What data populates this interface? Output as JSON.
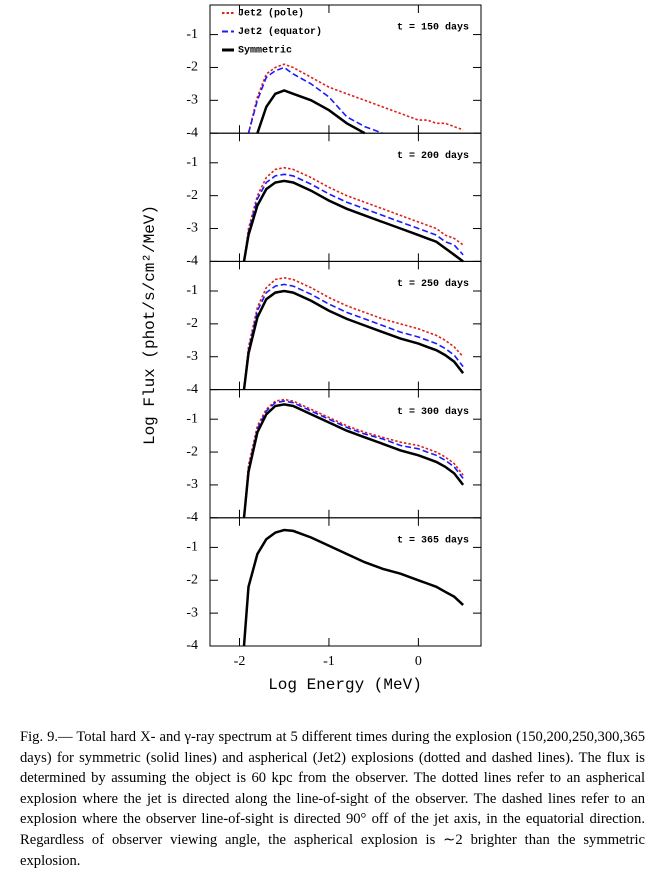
{
  "ylabel": "Log Flux (phot/s/cm²/MeV)",
  "xlabel": "Log Energy (MeV)",
  "caption": "Fig. 9.— Total hard X- and γ-ray spectrum at 5 different times during the explosion (150,200,250,300,365 days) for symmetric (solid lines) and aspherical (Jet2) explosions (dotted and dashed lines). The flux is determined by assuming the object is 60 kpc from the observer. The dotted lines refer to an aspherical explosion where the jet is directed along the line-of-sight of the observer. The dashed lines refer to an explosion where the observer line-of-sight is directed 90° off of the jet axis, in the equatorial direction. Regardless of observer viewing angle, the aspherical explosion is ∼2 brighter than the symmetric explosion.",
  "chart_data": [
    {
      "type": "line",
      "annotation": "t = 150 days",
      "x": [
        -1.95,
        -1.9,
        -1.8,
        -1.7,
        -1.6,
        -1.5,
        -1.4,
        -1.2,
        -1.0,
        -0.8,
        -0.6,
        -0.4,
        -0.2,
        0,
        0.1,
        0.2,
        0.3,
        0.4,
        0.5
      ],
      "series": [
        {
          "name": "Jet2 (pole)",
          "color": "#e0201b",
          "dash": "dotted",
          "values": [
            null,
            -4,
            -2.9,
            -2.2,
            -2.0,
            -1.9,
            -2.0,
            -2.3,
            -2.6,
            -2.8,
            -3.0,
            -3.2,
            -3.4,
            -3.6,
            -3.6,
            -3.7,
            -3.7,
            -3.8,
            -3.9
          ]
        },
        {
          "name": "Jet2 (equator)",
          "color": "#1a1aff",
          "dash": "dashed",
          "values": [
            null,
            -4,
            -3.0,
            -2.3,
            -2.1,
            -2.0,
            -2.2,
            -2.5,
            -2.9,
            -3.5,
            -3.8,
            -4,
            null,
            null,
            null,
            null,
            null,
            null,
            null
          ]
        },
        {
          "name": "Symmetric",
          "color": "#000000",
          "dash": "solid",
          "values": [
            null,
            null,
            -4,
            -3.2,
            -2.8,
            -2.7,
            -2.8,
            -3.0,
            -3.3,
            -3.7,
            -4,
            null,
            null,
            null,
            null,
            null,
            null,
            null,
            null
          ]
        }
      ],
      "xlim": [
        -2.33,
        0.7
      ],
      "xticks": [
        -2,
        -1,
        0
      ],
      "ylim": [
        -4,
        -0.1
      ],
      "yticks": [
        -4,
        -3,
        -2,
        -1
      ]
    },
    {
      "type": "line",
      "annotation": "t = 200 days",
      "x": [
        -1.95,
        -1.9,
        -1.8,
        -1.7,
        -1.6,
        -1.5,
        -1.4,
        -1.2,
        -1.0,
        -0.8,
        -0.6,
        -0.4,
        -0.2,
        0,
        0.1,
        0.2,
        0.3,
        0.4,
        0.5
      ],
      "series": [
        {
          "values": [
            -4,
            -3.0,
            -2.0,
            -1.45,
            -1.2,
            -1.15,
            -1.2,
            -1.45,
            -1.75,
            -2.0,
            -2.2,
            -2.4,
            -2.6,
            -2.8,
            -2.9,
            -3.0,
            -3.2,
            -3.3,
            -3.5
          ],
          "color": "#e0201b",
          "dash": "dotted"
        },
        {
          "values": [
            -4,
            -3.1,
            -2.1,
            -1.6,
            -1.4,
            -1.35,
            -1.4,
            -1.65,
            -1.95,
            -2.2,
            -2.4,
            -2.6,
            -2.8,
            -3.0,
            -3.1,
            -3.2,
            -3.4,
            -3.5,
            -3.8
          ],
          "color": "#1a1aff",
          "dash": "dashed"
        },
        {
          "values": [
            -4,
            -3.2,
            -2.3,
            -1.8,
            -1.6,
            -1.55,
            -1.6,
            -1.85,
            -2.15,
            -2.4,
            -2.6,
            -2.8,
            -3.0,
            -3.2,
            -3.3,
            -3.4,
            -3.6,
            -3.8,
            -4
          ],
          "color": "#000000",
          "dash": "solid"
        }
      ],
      "xlim": [
        -2.33,
        0.7
      ],
      "xticks": [
        -2,
        -1,
        0
      ],
      "ylim": [
        -4,
        -0.1
      ],
      "yticks": [
        -4,
        -3,
        -2,
        -1
      ]
    },
    {
      "type": "line",
      "annotation": "t = 250 days",
      "x": [
        -1.95,
        -1.9,
        -1.8,
        -1.7,
        -1.6,
        -1.5,
        -1.4,
        -1.2,
        -1.0,
        -0.8,
        -0.6,
        -0.4,
        -0.2,
        0,
        0.1,
        0.2,
        0.3,
        0.4,
        0.5
      ],
      "series": [
        {
          "values": [
            -4,
            -2.7,
            -1.5,
            -0.9,
            -0.65,
            -0.6,
            -0.65,
            -0.9,
            -1.2,
            -1.45,
            -1.65,
            -1.85,
            -2.0,
            -2.15,
            -2.25,
            -2.35,
            -2.5,
            -2.7,
            -3.0
          ],
          "color": "#e0201b",
          "dash": "dotted"
        },
        {
          "values": [
            -4,
            -2.8,
            -1.6,
            -1.05,
            -0.85,
            -0.8,
            -0.85,
            -1.1,
            -1.4,
            -1.65,
            -1.85,
            -2.05,
            -2.25,
            -2.4,
            -2.5,
            -2.6,
            -2.75,
            -2.95,
            -3.3
          ],
          "color": "#1a1aff",
          "dash": "dashed"
        },
        {
          "values": [
            -4,
            -2.9,
            -1.8,
            -1.25,
            -1.05,
            -1.0,
            -1.05,
            -1.3,
            -1.6,
            -1.85,
            -2.05,
            -2.25,
            -2.45,
            -2.6,
            -2.7,
            -2.8,
            -2.95,
            -3.15,
            -3.5
          ],
          "color": "#000000",
          "dash": "solid"
        }
      ],
      "xlim": [
        -2.33,
        0.7
      ],
      "xticks": [
        -2,
        -1,
        0
      ],
      "ylim": [
        -4,
        -0.1
      ],
      "yticks": [
        -4,
        -3,
        -2,
        -1
      ]
    },
    {
      "type": "line",
      "annotation": "t = 300 days",
      "x": [
        -1.95,
        -1.9,
        -1.8,
        -1.7,
        -1.6,
        -1.5,
        -1.4,
        -1.2,
        -1.0,
        -0.8,
        -0.6,
        -0.4,
        -0.2,
        0,
        0.1,
        0.2,
        0.3,
        0.4,
        0.5
      ],
      "series": [
        {
          "values": [
            -4,
            -2.4,
            -1.2,
            -0.7,
            -0.45,
            -0.4,
            -0.45,
            -0.7,
            -0.95,
            -1.2,
            -1.4,
            -1.55,
            -1.7,
            -1.8,
            -1.9,
            -2.0,
            -2.15,
            -2.35,
            -2.7
          ],
          "color": "#e0201b",
          "dash": "dotted"
        },
        {
          "values": [
            -4,
            -2.5,
            -1.3,
            -0.75,
            -0.5,
            -0.45,
            -0.5,
            -0.75,
            -1.0,
            -1.25,
            -1.45,
            -1.6,
            -1.8,
            -1.9,
            -2.0,
            -2.1,
            -2.25,
            -2.45,
            -2.8
          ],
          "color": "#1a1aff",
          "dash": "dashed"
        },
        {
          "values": [
            -4,
            -2.6,
            -1.4,
            -0.85,
            -0.6,
            -0.55,
            -0.6,
            -0.85,
            -1.1,
            -1.35,
            -1.55,
            -1.75,
            -1.95,
            -2.1,
            -2.2,
            -2.3,
            -2.45,
            -2.65,
            -3.0
          ],
          "color": "#000000",
          "dash": "solid"
        }
      ],
      "xlim": [
        -2.33,
        0.7
      ],
      "xticks": [
        -2,
        -1,
        0
      ],
      "ylim": [
        -4,
        -0.1
      ],
      "yticks": [
        -4,
        -3,
        -2,
        -1
      ]
    },
    {
      "type": "line",
      "annotation": "t = 365 days",
      "x": [
        -1.95,
        -1.9,
        -1.8,
        -1.7,
        -1.6,
        -1.5,
        -1.4,
        -1.2,
        -1.0,
        -0.8,
        -0.6,
        -0.4,
        -0.2,
        0,
        0.1,
        0.2,
        0.3,
        0.4,
        0.5
      ],
      "series": [
        {
          "values": [
            -4,
            -2.2,
            -1.2,
            -0.75,
            -0.55,
            -0.47,
            -0.5,
            -0.7,
            -0.95,
            -1.2,
            -1.45,
            -1.65,
            -1.8,
            -2.0,
            -2.1,
            -2.2,
            -2.35,
            -2.5,
            -2.75
          ],
          "color": "#e0201b",
          "dash": "dotted"
        },
        {
          "values": [
            -4,
            -2.2,
            -1.2,
            -0.75,
            -0.55,
            -0.47,
            -0.5,
            -0.7,
            -0.95,
            -1.2,
            -1.45,
            -1.65,
            -1.8,
            -2.0,
            -2.1,
            -2.2,
            -2.35,
            -2.5,
            -2.75
          ],
          "color": "#1a1aff",
          "dash": "dashed"
        },
        {
          "values": [
            -4,
            -2.2,
            -1.2,
            -0.75,
            -0.55,
            -0.47,
            -0.5,
            -0.7,
            -0.95,
            -1.2,
            -1.45,
            -1.65,
            -1.8,
            -2.0,
            -2.1,
            -2.2,
            -2.35,
            -2.5,
            -2.75
          ],
          "color": "#000000",
          "dash": "solid"
        }
      ],
      "xlim": [
        -2.33,
        0.7
      ],
      "xticks": [
        -2,
        -1,
        0
      ],
      "ylim": [
        -4,
        -0.1
      ],
      "yticks": [
        -4,
        -3,
        -2,
        -1
      ]
    }
  ]
}
